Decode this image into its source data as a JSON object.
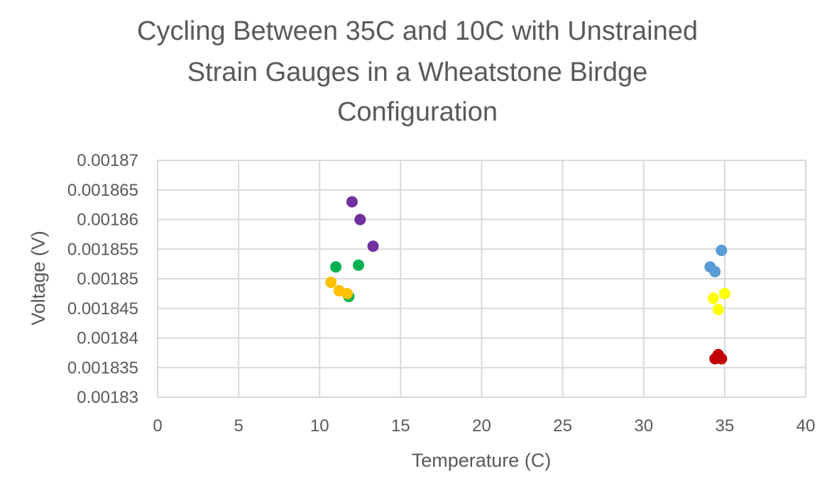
{
  "chart_data": {
    "type": "scatter",
    "title": [
      "Cycling Between 35C and 10C with Unstrained",
      "Strain Gauges in a Wheatstone Birdge",
      "Configuration"
    ],
    "xlabel": "Temperature (C)",
    "ylabel": "Voltage (V)",
    "xlim": [
      0,
      40
    ],
    "ylim": [
      0.00183,
      0.00187
    ],
    "xticks": [
      0,
      5,
      10,
      15,
      20,
      25,
      30,
      35,
      40
    ],
    "xtick_labels": [
      "0",
      "5",
      "10",
      "15",
      "20",
      "25",
      "30",
      "35",
      "40"
    ],
    "yticks": [
      0.00183,
      0.001835,
      0.00184,
      0.001845,
      0.00185,
      0.001855,
      0.00186,
      0.001865,
      0.00187
    ],
    "ytick_labels": [
      "0.00183",
      "0.001835",
      "0.00184",
      "0.001845",
      "0.00185",
      "0.001855",
      "0.00186",
      "0.001865",
      "0.00187"
    ],
    "grid": true,
    "legend": "none",
    "series": [
      {
        "color": "#7030a0",
        "points": [
          [
            12.0,
            0.001863
          ],
          [
            12.5,
            0.00186
          ],
          [
            13.3,
            0.0018555
          ]
        ]
      },
      {
        "color": "#00b050",
        "points": [
          [
            11.0,
            0.001852
          ],
          [
            12.4,
            0.0018523
          ],
          [
            11.8,
            0.001847
          ]
        ]
      },
      {
        "color": "#ffc000",
        "points": [
          [
            10.7,
            0.0018494
          ],
          [
            11.2,
            0.001848
          ],
          [
            11.7,
            0.0018475
          ]
        ]
      },
      {
        "color": "#5b9bd5",
        "points": [
          [
            34.8,
            0.0018548
          ],
          [
            34.1,
            0.001852
          ],
          [
            34.4,
            0.0018512
          ]
        ]
      },
      {
        "color": "#ffff00",
        "points": [
          [
            35.0,
            0.0018475
          ],
          [
            34.3,
            0.0018467
          ],
          [
            34.6,
            0.0018448
          ]
        ]
      },
      {
        "color": "#c00000",
        "points": [
          [
            34.6,
            0.0018372
          ],
          [
            34.4,
            0.0018365
          ],
          [
            34.8,
            0.0018365
          ]
        ]
      }
    ]
  }
}
